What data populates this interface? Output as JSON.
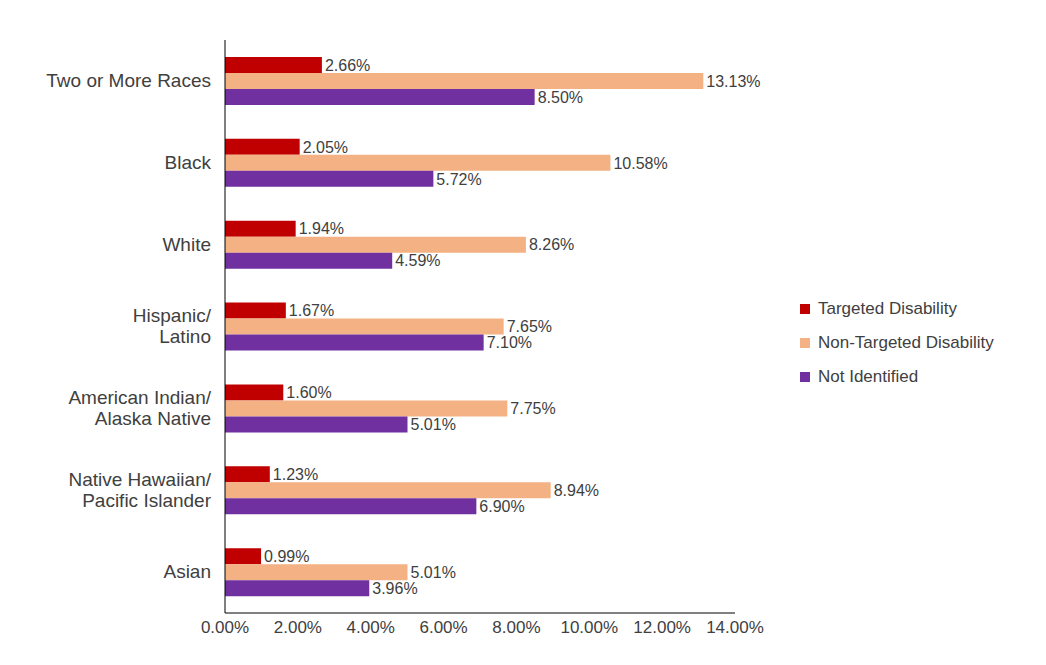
{
  "chart_data": {
    "type": "bar",
    "orientation": "horizontal",
    "grid": false,
    "legend": "right",
    "data_labels": true,
    "categories": [
      "Two or More Races",
      "Black",
      "White",
      "Hispanic/Latino",
      "American Indian/Alaska Native",
      "Native Hawaiian/Pacific Islander",
      "Asian"
    ],
    "series": [
      {
        "name": "Targeted Disability",
        "color": "#c00000",
        "values": [
          2.66,
          2.05,
          1.94,
          1.67,
          1.6,
          1.23,
          0.99
        ],
        "value_labels": [
          "2.66%",
          "2.05%",
          "1.94%",
          "1.67%",
          "1.60%",
          "1.23%",
          "0.99%"
        ]
      },
      {
        "name": "Non-Targeted Disability",
        "color": "#f4b183",
        "values": [
          13.13,
          10.58,
          8.26,
          7.65,
          7.75,
          8.94,
          5.01
        ],
        "value_labels": [
          "13.13%",
          "10.58%",
          "8.26%",
          "7.65%",
          "7.75%",
          "8.94%",
          "5.01%"
        ]
      },
      {
        "name": "Not Identified",
        "color": "#7030a0",
        "values": [
          8.5,
          5.72,
          4.59,
          7.1,
          5.01,
          6.9,
          3.96
        ],
        "value_labels": [
          "8.50%",
          "5.72%",
          "4.59%",
          "7.10%",
          "5.01%",
          "6.90%",
          "3.96%"
        ]
      }
    ],
    "xlim": [
      0,
      14
    ],
    "xticks": [
      {
        "value": 0,
        "label": "0.00%"
      },
      {
        "value": 2,
        "label": "2.00%"
      },
      {
        "value": 4,
        "label": "4.00%"
      },
      {
        "value": 6,
        "label": "6.00%"
      },
      {
        "value": 8,
        "label": "8.00%"
      },
      {
        "value": 10,
        "label": "10.00%"
      },
      {
        "value": 12,
        "label": "12.00%"
      },
      {
        "value": 14,
        "label": "14.00%"
      }
    ]
  }
}
